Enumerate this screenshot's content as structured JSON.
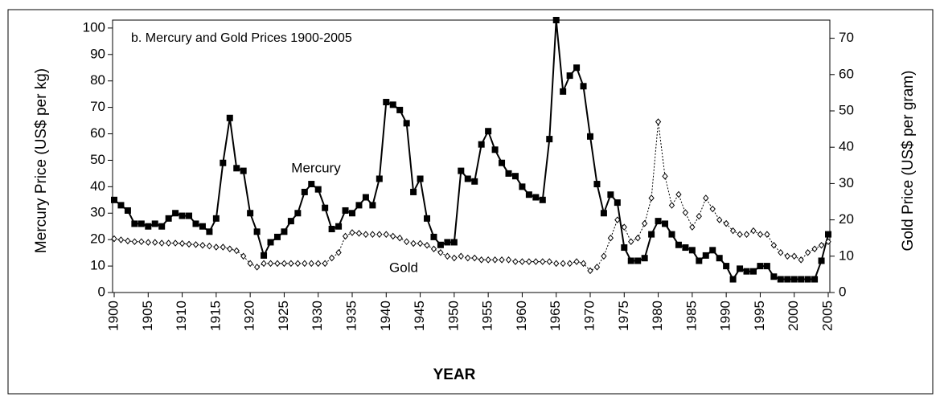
{
  "chart_data": {
    "type": "line",
    "title": "b. Mercury and Gold Prices 1900-2005",
    "xlabel": "YEAR",
    "ylabel": "Mercury Price  (US$ per kg)",
    "y2label": "Gold Price (US$ per gram)",
    "annotations": [
      "Mercury",
      "Gold"
    ],
    "x": [
      1900,
      1901,
      1902,
      1903,
      1904,
      1905,
      1906,
      1907,
      1908,
      1909,
      1910,
      1911,
      1912,
      1913,
      1914,
      1915,
      1916,
      1917,
      1918,
      1919,
      1920,
      1921,
      1922,
      1923,
      1924,
      1925,
      1926,
      1927,
      1928,
      1929,
      1930,
      1931,
      1932,
      1933,
      1934,
      1935,
      1936,
      1937,
      1938,
      1939,
      1940,
      1941,
      1942,
      1943,
      1944,
      1945,
      1946,
      1947,
      1948,
      1949,
      1950,
      1951,
      1952,
      1953,
      1954,
      1955,
      1956,
      1957,
      1958,
      1959,
      1960,
      1961,
      1962,
      1963,
      1964,
      1965,
      1966,
      1967,
      1968,
      1969,
      1970,
      1971,
      1972,
      1973,
      1974,
      1975,
      1976,
      1977,
      1978,
      1979,
      1980,
      1981,
      1982,
      1983,
      1984,
      1985,
      1986,
      1987,
      1988,
      1989,
      1990,
      1991,
      1992,
      1993,
      1994,
      1995,
      1996,
      1997,
      1998,
      1999,
      2000,
      2001,
      2002,
      2003,
      2004,
      2005
    ],
    "series": [
      {
        "name": "Mercury",
        "color": "#000000",
        "axis": "y",
        "values": [
          35,
          33,
          31,
          26,
          26,
          25,
          26,
          25,
          28,
          30,
          29,
          29,
          26,
          25,
          23,
          28,
          49,
          66,
          47,
          46,
          30,
          23,
          14,
          19,
          21,
          23,
          27,
          30,
          38,
          41,
          39,
          32,
          24,
          25,
          31,
          30,
          33,
          36,
          33,
          43,
          72,
          71,
          69,
          64,
          38,
          43,
          28,
          21,
          18,
          19,
          19,
          46,
          43,
          42,
          56,
          61,
          54,
          49,
          45,
          44,
          40,
          37,
          36,
          35,
          58,
          103,
          76,
          82,
          85,
          78,
          59,
          41,
          30,
          37,
          34,
          17,
          12,
          12,
          13,
          22,
          27,
          26,
          22,
          18,
          17,
          16,
          12,
          14,
          16,
          13,
          10,
          5,
          9,
          8,
          8,
          10,
          10,
          6,
          5,
          5,
          5,
          5,
          5,
          5,
          12,
          22
        ]
      },
      {
        "name": "Gold",
        "color": "#000000",
        "axis": "y2",
        "values": [
          14.8,
          14.5,
          14.2,
          14,
          14,
          13.8,
          13.8,
          13.6,
          13.6,
          13.6,
          13.5,
          13.3,
          13.2,
          13,
          12.8,
          12.5,
          12.5,
          12,
          11.5,
          10,
          8,
          7,
          8,
          8,
          8,
          8,
          8,
          8,
          8,
          8,
          8,
          8,
          9.5,
          11,
          15.5,
          16.5,
          16.3,
          16,
          16,
          16,
          16,
          15.5,
          15,
          14,
          13.5,
          13.5,
          13,
          12,
          11,
          10,
          9.5,
          10,
          9.5,
          9.5,
          9,
          9,
          9,
          9,
          9,
          8.5,
          8.5,
          8.5,
          8.5,
          8.5,
          8.5,
          8,
          8,
          8,
          8.5,
          8,
          6,
          7,
          10,
          15,
          20,
          18,
          14,
          15,
          19,
          26,
          47,
          32,
          24,
          27,
          22,
          18,
          21,
          26,
          23,
          20,
          19,
          17,
          16,
          16,
          17,
          16,
          16,
          13,
          11,
          10,
          10,
          9,
          11,
          12,
          13,
          14
        ]
      }
    ],
    "xlim": [
      1900,
      2005
    ],
    "xticks": [
      1900,
      1905,
      1910,
      1915,
      1920,
      1925,
      1930,
      1935,
      1940,
      1945,
      1950,
      1955,
      1960,
      1965,
      1970,
      1975,
      1980,
      1985,
      1990,
      1995,
      2000,
      2005
    ],
    "ylim": [
      0,
      103
    ],
    "yticks": [
      0,
      10,
      20,
      30,
      40,
      50,
      60,
      70,
      80,
      90,
      100
    ],
    "y2lim": [
      0,
      75
    ],
    "y2ticks": [
      0,
      10,
      20,
      30,
      40,
      50,
      60,
      70
    ],
    "grid": false
  }
}
